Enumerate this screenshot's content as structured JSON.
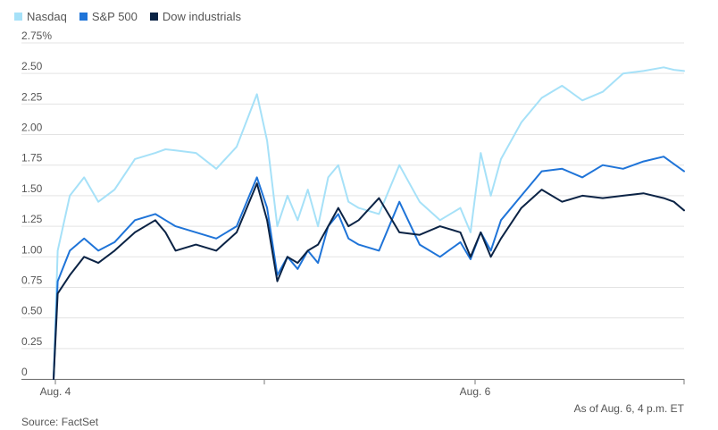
{
  "colors": {
    "nasdaq": "#a6e1f8",
    "sp500": "#1f74d8",
    "dow": "#0b2345",
    "grid": "#e3e3e3",
    "axis": "#777777"
  },
  "source": "Source: FactSet",
  "as_of": "As of Aug. 6, 4 p.m. ET",
  "chart_data": {
    "type": "line",
    "title": "",
    "xlabel": "",
    "ylabel": "",
    "ylim": [
      0,
      2.75
    ],
    "y_ticks": [
      "0",
      "0.25",
      "0.50",
      "0.75",
      "1.00",
      "1.25",
      "1.50",
      "1.75",
      "2.00",
      "2.25",
      "2.50",
      "2.75%"
    ],
    "x_tick_labels": [
      "Aug. 4",
      "",
      "Aug. 6",
      ""
    ],
    "x_range": [
      0,
      3.1
    ],
    "grid": true,
    "legend": "top-left",
    "series": [
      {
        "name": "Nasdaq",
        "x": [
          0,
          0.02,
          0.08,
          0.15,
          0.22,
          0.3,
          0.4,
          0.5,
          0.55,
          0.6,
          0.7,
          0.8,
          0.9,
          1.0,
          1.05,
          1.1,
          1.15,
          1.2,
          1.25,
          1.3,
          1.35,
          1.4,
          1.45,
          1.5,
          1.6,
          1.7,
          1.8,
          1.9,
          2.0,
          2.05,
          2.1,
          2.15,
          2.2,
          2.3,
          2.4,
          2.5,
          2.6,
          2.7,
          2.8,
          2.9,
          3.0,
          3.05,
          3.1
        ],
        "values": [
          0,
          1.05,
          1.5,
          1.65,
          1.45,
          1.55,
          1.8,
          1.85,
          1.88,
          1.87,
          1.85,
          1.72,
          1.9,
          2.33,
          1.95,
          1.25,
          1.5,
          1.3,
          1.55,
          1.25,
          1.65,
          1.75,
          1.45,
          1.4,
          1.35,
          1.75,
          1.45,
          1.3,
          1.4,
          1.2,
          1.85,
          1.5,
          1.8,
          2.1,
          2.3,
          2.4,
          2.28,
          2.35,
          2.5,
          2.52,
          2.55,
          2.53,
          2.52
        ]
      },
      {
        "name": "S&P 500",
        "x": [
          0,
          0.02,
          0.08,
          0.15,
          0.22,
          0.3,
          0.4,
          0.5,
          0.55,
          0.6,
          0.7,
          0.8,
          0.9,
          1.0,
          1.05,
          1.1,
          1.15,
          1.2,
          1.25,
          1.3,
          1.35,
          1.4,
          1.45,
          1.5,
          1.6,
          1.7,
          1.8,
          1.9,
          2.0,
          2.05,
          2.1,
          2.15,
          2.2,
          2.3,
          2.4,
          2.5,
          2.6,
          2.7,
          2.8,
          2.9,
          3.0,
          3.05,
          3.1
        ],
        "values": [
          0,
          0.8,
          1.05,
          1.15,
          1.05,
          1.12,
          1.3,
          1.35,
          1.3,
          1.25,
          1.2,
          1.15,
          1.25,
          1.65,
          1.4,
          0.85,
          1.0,
          0.9,
          1.05,
          0.95,
          1.25,
          1.35,
          1.15,
          1.1,
          1.05,
          1.45,
          1.1,
          1.0,
          1.12,
          0.98,
          1.2,
          1.05,
          1.3,
          1.5,
          1.7,
          1.72,
          1.65,
          1.75,
          1.72,
          1.78,
          1.82,
          1.76,
          1.7
        ]
      },
      {
        "name": "Dow industrials",
        "x": [
          0,
          0.02,
          0.08,
          0.15,
          0.22,
          0.3,
          0.4,
          0.5,
          0.55,
          0.6,
          0.7,
          0.8,
          0.9,
          1.0,
          1.05,
          1.1,
          1.15,
          1.2,
          1.25,
          1.3,
          1.35,
          1.4,
          1.45,
          1.5,
          1.6,
          1.7,
          1.8,
          1.9,
          2.0,
          2.05,
          2.1,
          2.15,
          2.2,
          2.3,
          2.4,
          2.5,
          2.6,
          2.7,
          2.8,
          2.9,
          3.0,
          3.05,
          3.1
        ],
        "values": [
          0,
          0.7,
          0.85,
          1.0,
          0.95,
          1.05,
          1.2,
          1.3,
          1.2,
          1.05,
          1.1,
          1.05,
          1.2,
          1.6,
          1.3,
          0.8,
          1.0,
          0.95,
          1.05,
          1.1,
          1.25,
          1.4,
          1.25,
          1.3,
          1.48,
          1.2,
          1.18,
          1.25,
          1.2,
          1.0,
          1.2,
          1.0,
          1.15,
          1.4,
          1.55,
          1.45,
          1.5,
          1.48,
          1.5,
          1.52,
          1.48,
          1.45,
          1.38
        ]
      }
    ]
  }
}
